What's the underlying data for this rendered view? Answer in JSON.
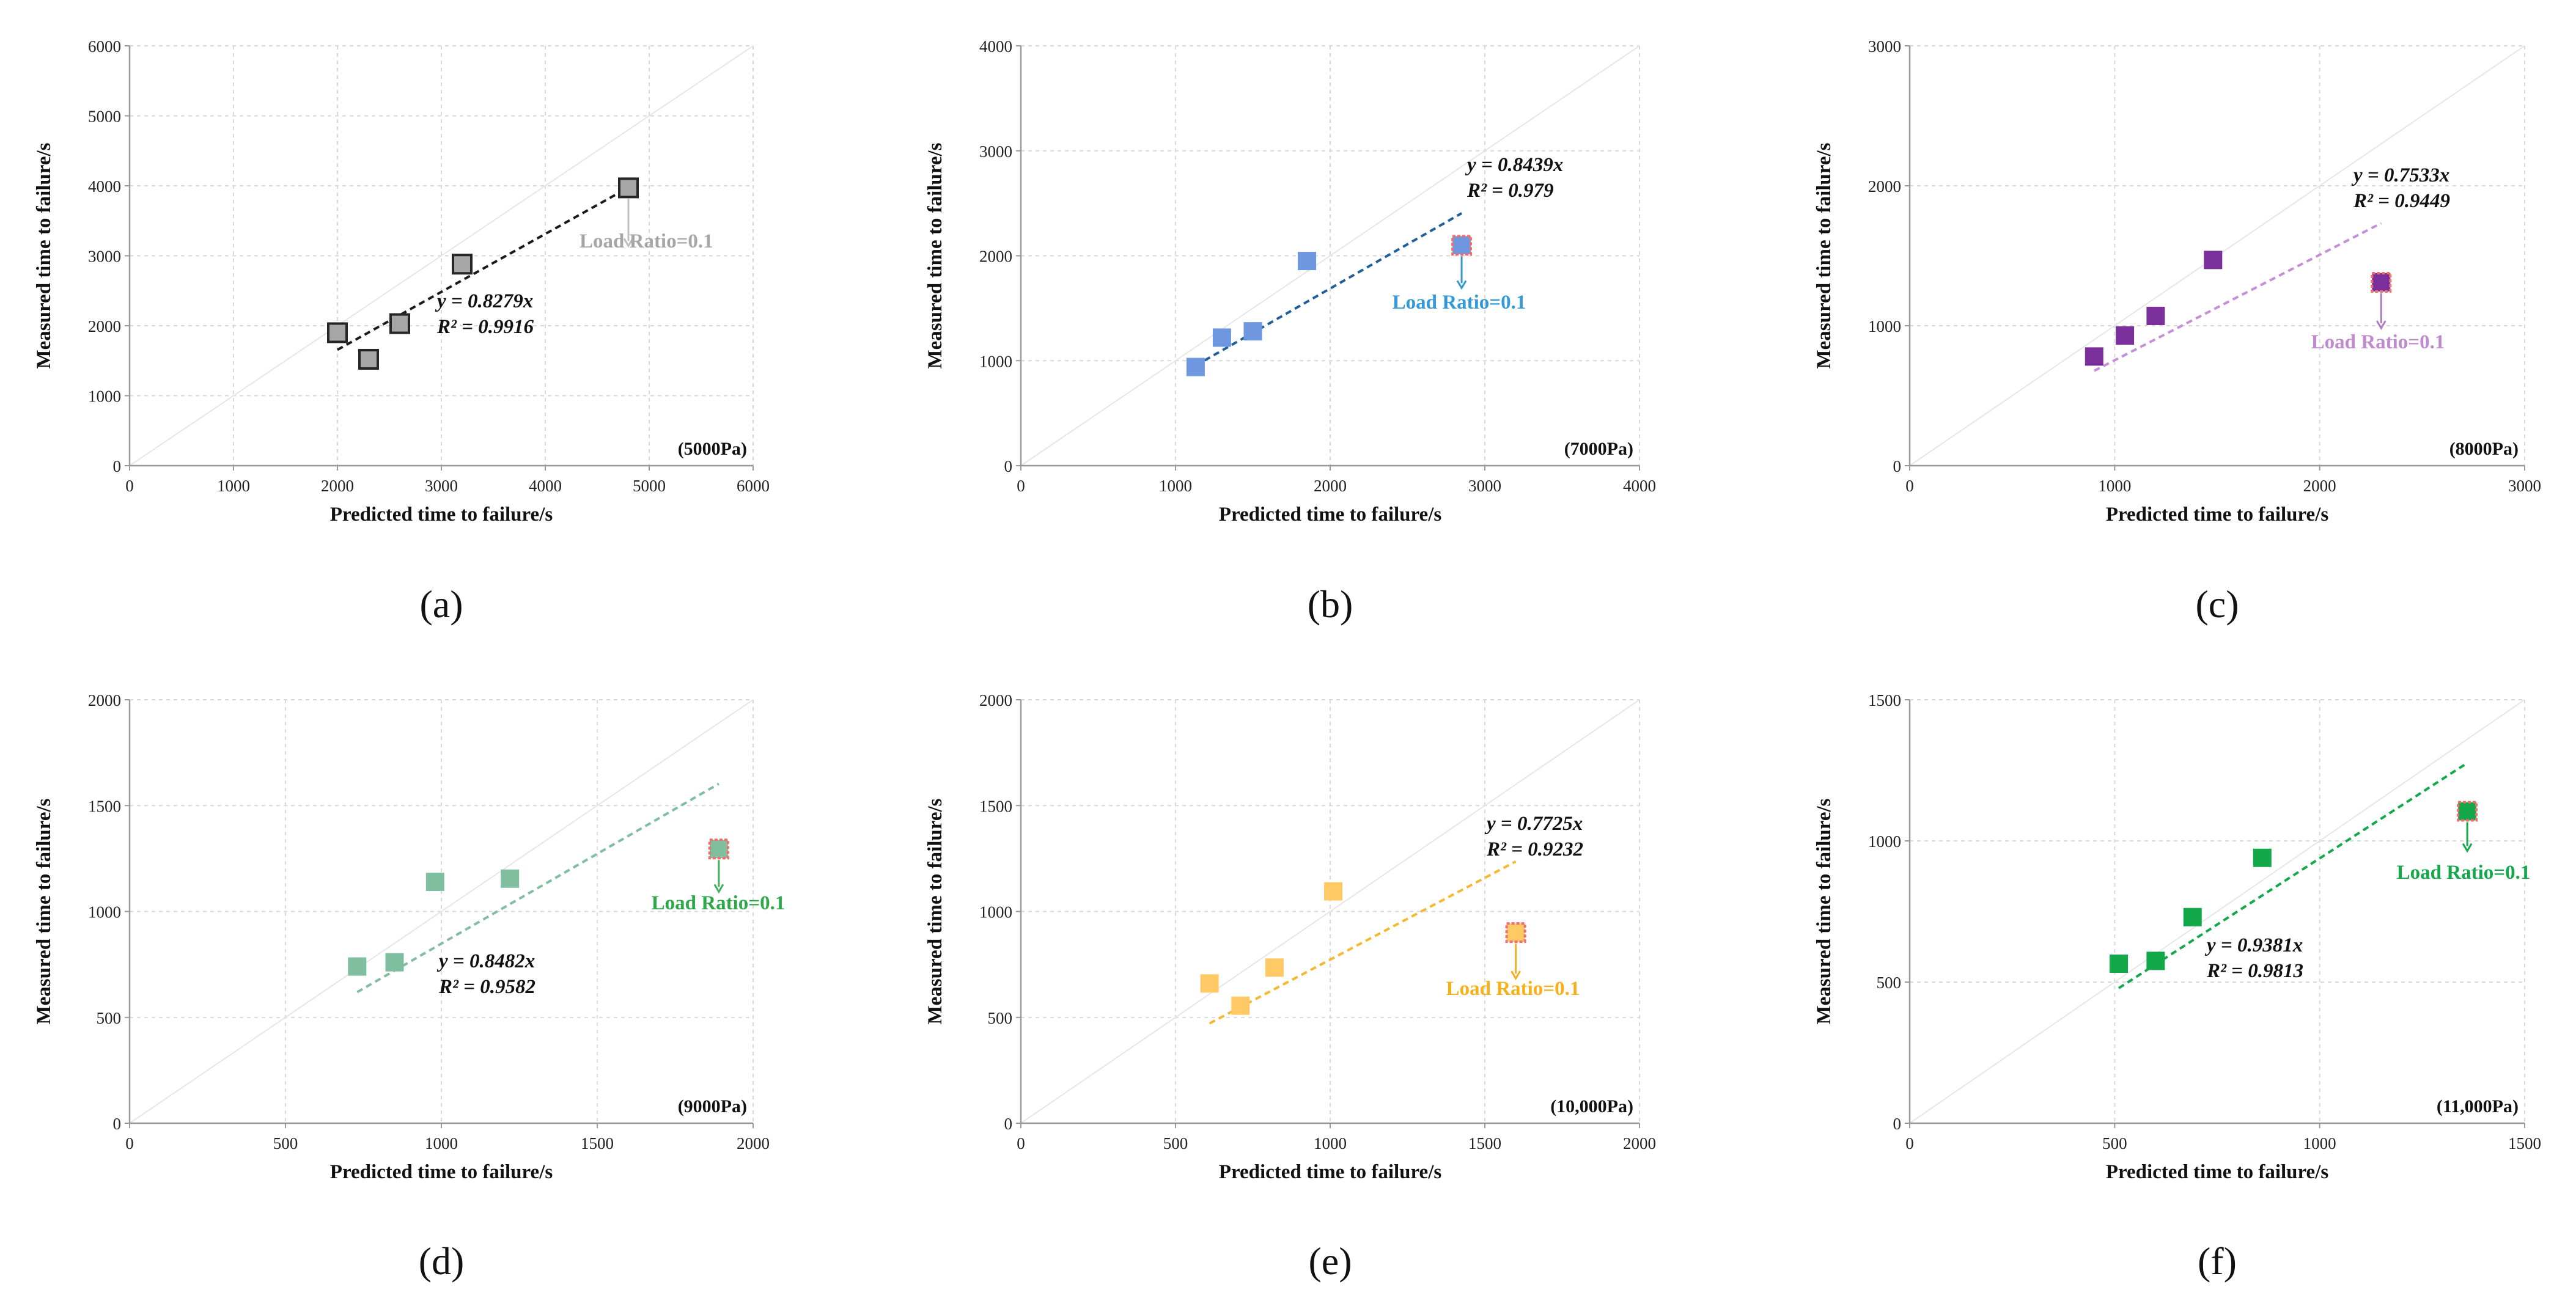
{
  "chart_data": [
    {
      "id": "a",
      "type": "scatter",
      "label": "(a)",
      "tag": "(5000Pa)",
      "xlabel": "Predicted time to failure/s",
      "ylabel": "Measured time to failure/s",
      "xlim": [
        0,
        6000
      ],
      "ylim": [
        0,
        6000
      ],
      "xticks": [
        0,
        1000,
        2000,
        3000,
        4000,
        5000,
        6000
      ],
      "yticks": [
        0,
        1000,
        2000,
        3000,
        4000,
        5000,
        6000
      ],
      "marker_color": "#a6a6a6",
      "marker_edge": "#262626",
      "line_color": "#1a1a1a",
      "points": [
        [
          2000,
          1900
        ],
        [
          2300,
          1520
        ],
        [
          2600,
          2030
        ],
        [
          3200,
          2880
        ]
      ],
      "fit": {
        "slope": 0.8279,
        "x_range": [
          2000,
          4800
        ],
        "equation": "y = 0.8279x",
        "r2": "R² = 0.9916"
      },
      "outlier": {
        "x": 4800,
        "y": 3970,
        "color": "#a6a6a6",
        "edge": "#262626",
        "arrow_color": "#bfbfbf"
      },
      "annotation": {
        "text": "Load Ratio=0.1",
        "color": "#a6a6a6"
      }
    },
    {
      "id": "b",
      "type": "scatter",
      "label": "(b)",
      "tag": "(7000Pa)",
      "xlabel": "Predicted time to failure/s",
      "ylabel": "Measured time to failure/s",
      "xlim": [
        0,
        4000
      ],
      "ylim": [
        0,
        4000
      ],
      "xticks": [
        0,
        1000,
        2000,
        3000,
        4000
      ],
      "yticks": [
        0,
        1000,
        2000,
        3000,
        4000
      ],
      "marker_color": "#6f97e0",
      "marker_edge": "none",
      "line_color": "#1f5f9c",
      "points": [
        [
          1130,
          940
        ],
        [
          1300,
          1220
        ],
        [
          1500,
          1280
        ],
        [
          1850,
          1950
        ]
      ],
      "fit": {
        "slope": 0.8439,
        "x_range": [
          1130,
          2850
        ],
        "equation": "y = 0.8439x",
        "r2": "R² = 0.979"
      },
      "outlier": {
        "x": 2850,
        "y": 2100,
        "color": "#6f97e0",
        "edge": "#f26d6d",
        "arrow_color": "#3399cc"
      },
      "annotation": {
        "text": "Load Ratio=0.1",
        "color": "#3399d8"
      }
    },
    {
      "id": "c",
      "type": "scatter",
      "label": "(c)",
      "tag": "(8000Pa)",
      "xlabel": "Predicted time to failure/s",
      "ylabel": "Measured time to failure/s",
      "xlim": [
        0,
        3000
      ],
      "ylim": [
        0,
        3000
      ],
      "xticks": [
        0,
        1000,
        2000,
        3000
      ],
      "yticks": [
        0,
        1000,
        2000,
        3000
      ],
      "marker_color": "#7a2f9a",
      "marker_edge": "none",
      "line_color": "#c58ed8",
      "points": [
        [
          900,
          780
        ],
        [
          1050,
          930
        ],
        [
          1200,
          1070
        ],
        [
          1480,
          1470
        ]
      ],
      "fit": {
        "slope": 0.7533,
        "x_range": [
          900,
          2300
        ],
        "equation": "y = 0.7533x",
        "r2": "R² = 0.9449"
      },
      "outlier": {
        "x": 2300,
        "y": 1310,
        "color": "#7a2f9a",
        "edge": "#f26d6d",
        "arrow_color": "#b07ac0"
      },
      "annotation": {
        "text": "Load Ratio=0.1",
        "color": "#c08ad0"
      }
    },
    {
      "id": "d",
      "type": "scatter",
      "label": "(d)",
      "tag": "(9000Pa)",
      "xlabel": "Predicted time to failure/s",
      "ylabel": "Measured time to failure/s",
      "xlim": [
        0,
        2000
      ],
      "ylim": [
        0,
        2000
      ],
      "xticks": [
        0,
        500,
        1000,
        1500,
        2000
      ],
      "yticks": [
        0,
        500,
        1000,
        1500,
        2000
      ],
      "marker_color": "#7fbf9f",
      "marker_edge": "none",
      "line_color": "#7fbf9f",
      "points": [
        [
          730,
          740
        ],
        [
          850,
          760
        ],
        [
          980,
          1140
        ],
        [
          1220,
          1155
        ]
      ],
      "fit": {
        "slope": 0.8482,
        "x_range": [
          730,
          1890
        ],
        "equation": "y = 0.8482x",
        "r2": "R² = 0.9582"
      },
      "outlier": {
        "x": 1890,
        "y": 1295,
        "color": "#7fbf9f",
        "edge": "#f26d6d",
        "arrow_color": "#3fb05a"
      },
      "annotation": {
        "text": "Load Ratio=0.1",
        "color": "#2ea84a"
      }
    },
    {
      "id": "e",
      "type": "scatter",
      "label": "(e)",
      "tag": "(10,000Pa)",
      "xlabel": "Predicted time to failure/s",
      "ylabel": "Measured time to failure/s",
      "xlim": [
        0,
        2000
      ],
      "ylim": [
        0,
        2000
      ],
      "xticks": [
        0,
        500,
        1000,
        1500,
        2000
      ],
      "yticks": [
        0,
        500,
        1000,
        1500,
        2000
      ],
      "marker_color": "#ffc966",
      "marker_edge": "none",
      "line_color": "#f5b830",
      "points": [
        [
          610,
          660
        ],
        [
          710,
          555
        ],
        [
          820,
          735
        ],
        [
          1010,
          1095
        ]
      ],
      "fit": {
        "slope": 0.7725,
        "x_range": [
          610,
          1600
        ],
        "equation": "y = 0.7725x",
        "r2": "R² = 0.9232"
      },
      "outlier": {
        "x": 1600,
        "y": 900,
        "color": "#ffc966",
        "edge": "#f26d6d",
        "arrow_color": "#f0b020"
      },
      "annotation": {
        "text": "Load Ratio=0.1",
        "color": "#f5b01a"
      }
    },
    {
      "id": "f",
      "type": "scatter",
      "label": "(f)",
      "tag": "(11,000Pa)",
      "xlabel": "Predicted time to failure/s",
      "ylabel": "Measured time to failure/s",
      "xlim": [
        0,
        1500
      ],
      "ylim": [
        0,
        1500
      ],
      "xticks": [
        0,
        500,
        1000,
        1500
      ],
      "yticks": [
        0,
        500,
        1000,
        1500
      ],
      "marker_color": "#13a84a",
      "marker_edge": "none",
      "line_color": "#13a84a",
      "points": [
        [
          510,
          565
        ],
        [
          600,
          575
        ],
        [
          690,
          730
        ],
        [
          860,
          940
        ]
      ],
      "fit": {
        "slope": 0.9381,
        "x_range": [
          510,
          1360
        ],
        "equation": "y = 0.9381x",
        "r2": "R² = 0.9813"
      },
      "outlier": {
        "x": 1360,
        "y": 1105,
        "color": "#13a84a",
        "edge": "#f26d6d",
        "arrow_color": "#13a84a"
      },
      "annotation": {
        "text": "Load Ratio=0.1",
        "color": "#13a84a"
      }
    }
  ]
}
